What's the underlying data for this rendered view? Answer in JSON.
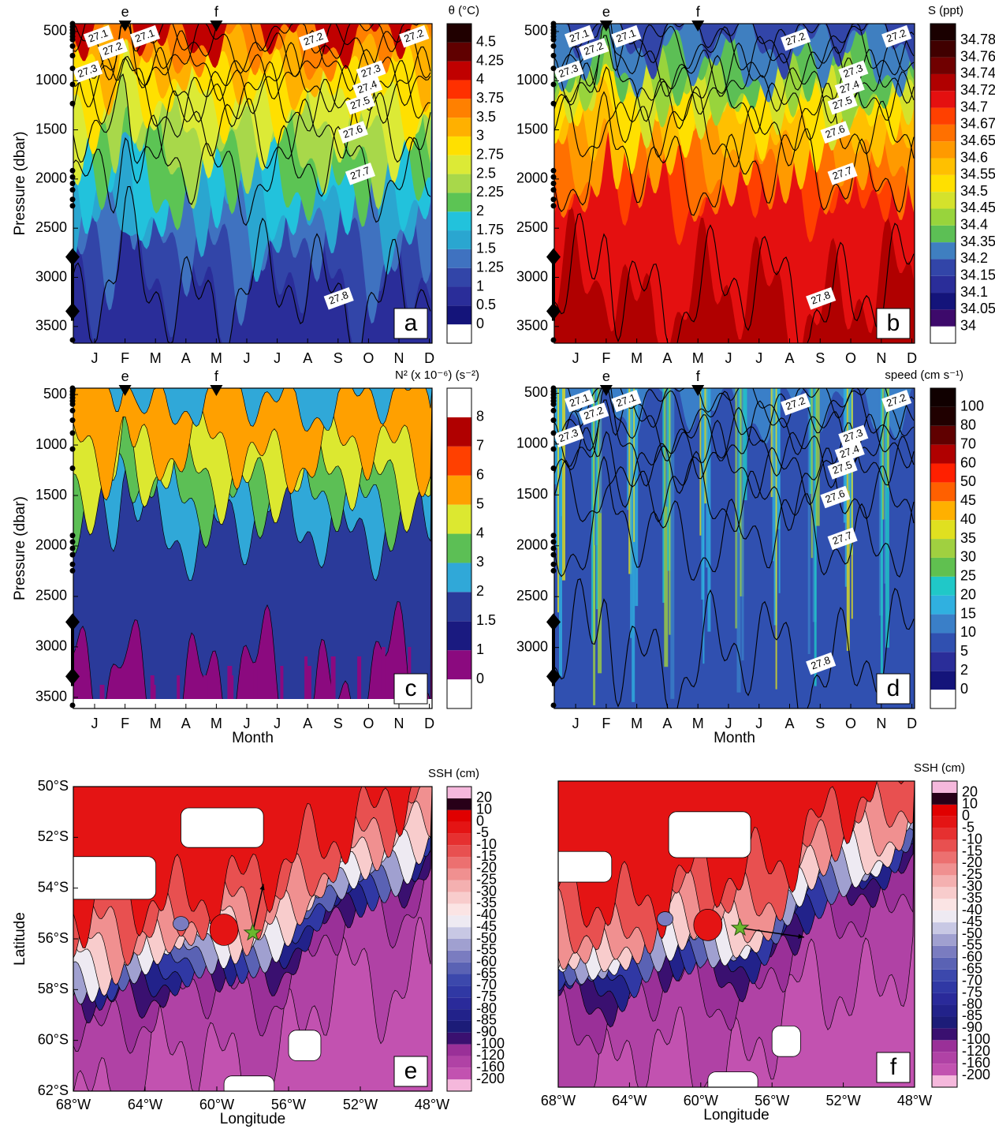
{
  "chart_data": [
    {
      "type": "contour",
      "panel": "a",
      "colorbar_title": "θ (°C)",
      "levels": [
        0,
        0.5,
        1,
        1.25,
        1.5,
        1.75,
        2,
        2.25,
        2.5,
        2.75,
        3,
        3.5,
        3.75,
        4,
        4.25,
        4.5
      ],
      "colors": [
        "#ffffff",
        "#14147a",
        "#2a2d99",
        "#3245a8",
        "#3f72c0",
        "#2aa6d0",
        "#22c2dc",
        "#5cc454",
        "#a8d84a",
        "#dcea36",
        "#ffe000",
        "#ffb000",
        "#ff8000",
        "#ff3000",
        "#c00000",
        "#600000",
        "#200000"
      ],
      "categories": [
        "J",
        "F",
        "M",
        "A",
        "M",
        "J",
        "J",
        "A",
        "S",
        "O",
        "N",
        "D"
      ],
      "ylim": [
        420,
        3670
      ],
      "yticks": [
        500,
        1000,
        1500,
        2000,
        2500,
        3000,
        3500
      ],
      "ylabel": "Pressure (dbar)",
      "contour_levels": [
        27.1,
        27.2,
        27.3,
        27.4,
        27.5,
        27.6,
        27.7,
        27.8
      ],
      "markers": [
        "e",
        "f"
      ]
    },
    {
      "type": "contour",
      "panel": "b",
      "colorbar_title": "S (ppt)",
      "levels": [
        34,
        34.05,
        34.1,
        34.15,
        34.2,
        34.35,
        34.4,
        34.45,
        34.5,
        34.55,
        34.6,
        34.65,
        34.67,
        34.7,
        34.72,
        34.74,
        34.76,
        34.78
      ],
      "colors": [
        "#ffffff",
        "#3d0a6b",
        "#14147a",
        "#2a2d99",
        "#3245a8",
        "#3f7fc0",
        "#5cbf55",
        "#98d43c",
        "#d4e22c",
        "#ffe000",
        "#ffc000",
        "#ff9a00",
        "#ff7000",
        "#ff4000",
        "#e41010",
        "#b00000",
        "#700000",
        "#400000",
        "#1a0000"
      ],
      "categories": [
        "J",
        "F",
        "M",
        "A",
        "M",
        "J",
        "J",
        "A",
        "S",
        "O",
        "N",
        "D"
      ],
      "ylim": [
        420,
        3670
      ],
      "yticks": [
        500,
        1000,
        1500,
        2000,
        2500,
        3000,
        3500
      ],
      "contour_levels": [
        27.1,
        27.2,
        27.3,
        27.4,
        27.5,
        27.6,
        27.7,
        27.8
      ],
      "markers": [
        "e",
        "f"
      ]
    },
    {
      "type": "contour",
      "panel": "c",
      "colorbar_title": "N² (x 10⁻⁶) (s⁻²)",
      "levels": [
        0,
        1,
        1.5,
        2,
        3,
        4,
        5,
        6,
        7,
        8
      ],
      "colors": [
        "#ffffff",
        "#8b0a7f",
        "#1a1a80",
        "#2a3a9a",
        "#30a8d8",
        "#5cbf55",
        "#dce830",
        "#ffa000",
        "#ff4000",
        "#b00000",
        "#ffffff"
      ],
      "categories": [
        "J",
        "F",
        "M",
        "A",
        "M",
        "J",
        "J",
        "A",
        "S",
        "O",
        "N",
        "D"
      ],
      "ylim": [
        437,
        3610
      ],
      "yticks": [
        500,
        1000,
        1500,
        2000,
        2500,
        3000,
        3500
      ],
      "ylabel": "Pressure (dbar)",
      "xlabel": "Month",
      "markers": [
        "e",
        "f"
      ]
    },
    {
      "type": "contour",
      "panel": "d",
      "colorbar_title": "speed (cm s⁻¹)",
      "levels": [
        0,
        2,
        5,
        10,
        15,
        20,
        25,
        30,
        35,
        40,
        45,
        50,
        60,
        70,
        80,
        100
      ],
      "colors": [
        "#ffffff",
        "#14147a",
        "#2a2d99",
        "#3050b0",
        "#3a7fc8",
        "#30b0e0",
        "#20c8c8",
        "#60c050",
        "#a0d040",
        "#e0e020",
        "#ffb000",
        "#ff6000",
        "#ff2000",
        "#b00000",
        "#600000",
        "#200000",
        "#100000"
      ],
      "categories": [
        "J",
        "F",
        "M",
        "A",
        "M",
        "J",
        "J",
        "A",
        "S",
        "O",
        "N",
        "D"
      ],
      "ylim": [
        450,
        3600
      ],
      "yticks": [
        500,
        1000,
        1500,
        2000,
        2500,
        3000
      ],
      "xlabel": "Month",
      "contour_levels": [
        27.1,
        27.2,
        27.3,
        27.4,
        27.5,
        27.6,
        27.7,
        27.8
      ],
      "markers": [
        "e",
        "f"
      ]
    },
    {
      "type": "map",
      "panel": "e",
      "colorbar_title": "SSH (cm)",
      "levels": [
        -200,
        -160,
        -120,
        -100,
        -90,
        -85,
        -80,
        -75,
        -70,
        -65,
        -60,
        -55,
        -50,
        -45,
        -40,
        -35,
        -30,
        -25,
        -20,
        -15,
        -10,
        -5,
        0,
        10,
        20
      ],
      "colors": [
        "#f5b8dc",
        "#c252b0",
        "#b042a5",
        "#9a3098",
        "#3a1070",
        "#1c1c78",
        "#22228a",
        "#2a2a9a",
        "#3038a4",
        "#3c48ac",
        "#5a62b4",
        "#7a7cc0",
        "#a0a0d0",
        "#c8c8e4",
        "#eeeaf2",
        "#fbe4e4",
        "#f8cccc",
        "#f4b0b0",
        "#f09090",
        "#ec7070",
        "#e85050",
        "#e63030",
        "#e41414",
        "#e00000",
        "#280018",
        "#f5b8dc"
      ],
      "xlim": [
        -68,
        -48
      ],
      "xticks": [
        {
          "value": -68,
          "label": "68°W"
        },
        {
          "value": -64,
          "label": "64°W"
        },
        {
          "value": -60,
          "label": "60°W"
        },
        {
          "value": -56,
          "label": "56°W"
        },
        {
          "value": -52,
          "label": "52°W"
        },
        {
          "value": -48,
          "label": "48°W"
        }
      ],
      "ylim": [
        -62,
        -50
      ],
      "yticks": [
        {
          "value": -50,
          "label": "50°S"
        },
        {
          "value": -52,
          "label": "52°S"
        },
        {
          "value": -54,
          "label": "54°S"
        },
        {
          "value": -56,
          "label": "56°S"
        },
        {
          "value": -58,
          "label": "58°S"
        },
        {
          "value": -60,
          "label": "60°S"
        },
        {
          "value": -62,
          "label": "62°S"
        }
      ],
      "xlabel": "Longitude",
      "ylabel": "Latitude"
    },
    {
      "type": "map",
      "panel": "f",
      "colorbar_title": "SSH (cm)",
      "levels": [
        -200,
        -160,
        -120,
        -100,
        -90,
        -85,
        -80,
        -75,
        -70,
        -65,
        -60,
        -55,
        -50,
        -45,
        -40,
        -35,
        -30,
        -25,
        -20,
        -15,
        -10,
        -5,
        0,
        10,
        20
      ],
      "colors": [
        "#f5b8dc",
        "#c252b0",
        "#b042a5",
        "#9a3098",
        "#3a1070",
        "#1c1c78",
        "#22228a",
        "#2a2a9a",
        "#3038a4",
        "#3c48ac",
        "#5a62b4",
        "#7a7cc0",
        "#a0a0d0",
        "#c8c8e4",
        "#eeeaf2",
        "#fbe4e4",
        "#f8cccc",
        "#f4b0b0",
        "#f09090",
        "#ec7070",
        "#e85050",
        "#e63030",
        "#e41414",
        "#e00000",
        "#280018",
        "#f5b8dc"
      ],
      "xlim": [
        -68,
        -48
      ],
      "xticks": [
        {
          "value": -68,
          "label": "68°W"
        },
        {
          "value": -64,
          "label": "64°W"
        },
        {
          "value": -60,
          "label": "60°W"
        },
        {
          "value": -56,
          "label": "56°W"
        },
        {
          "value": -52,
          "label": "52°W"
        },
        {
          "value": -48,
          "label": "48°W"
        }
      ],
      "ylim": [
        -62,
        -50
      ],
      "xlabel": "Longitude"
    }
  ]
}
